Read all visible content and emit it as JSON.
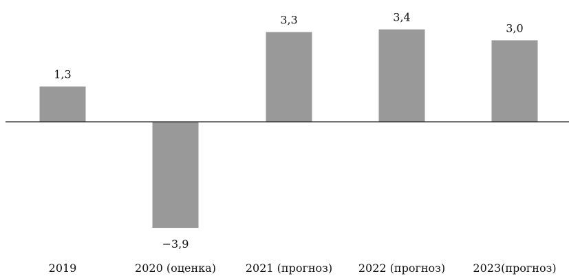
{
  "chart_data": {
    "type": "bar",
    "categories": [
      "2019",
      "2020 (оценка)",
      "2021 (прогноз)",
      "2022 (прогноз)",
      "2023(прогноз)"
    ],
    "values": [
      1.3,
      -3.9,
      3.3,
      3.4,
      3.0
    ],
    "value_labels": [
      "1,3",
      "−3,9",
      "3,3",
      "3,4",
      "3,0"
    ],
    "title": "",
    "xlabel": "",
    "ylabel": "",
    "ylim": [
      -3.9,
      3.4
    ],
    "grid": false,
    "legend": "none",
    "bar_color": "#999999",
    "axis_color": "#222222"
  }
}
